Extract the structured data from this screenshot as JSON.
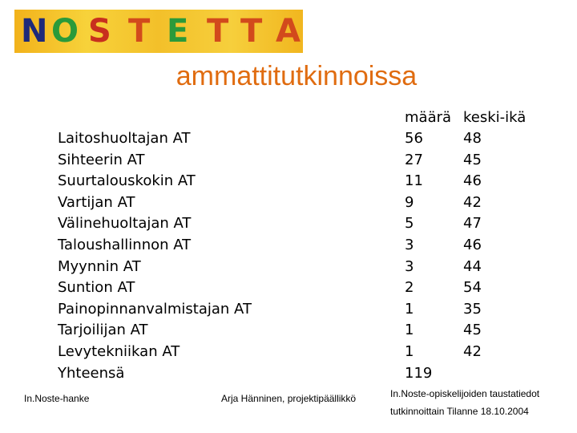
{
  "logo": {
    "letters": [
      "N",
      "O",
      "S",
      "T",
      "E",
      "T",
      "T",
      "A"
    ],
    "colors": [
      "#1e2a7a",
      "#2a9a3a",
      "#c8301e",
      "#d24a1c",
      "#2a9a3a",
      "#d24a1c",
      "#d24a1c",
      "#d24a1c"
    ],
    "background": "#f3c02a"
  },
  "title": "ammattitutkinnoissa",
  "columns": {
    "count_header": "määrä",
    "age_header": "keski-ikä"
  },
  "rows": [
    {
      "label": "Laitoshuoltajan AT",
      "count": "56",
      "age": "48"
    },
    {
      "label": "Sihteerin AT",
      "count": "27",
      "age": "45"
    },
    {
      "label": "Suurtalouskokin AT",
      "count": "11",
      "age": "46"
    },
    {
      "label": "Vartijan AT",
      "count": "9",
      "age": "42"
    },
    {
      "label": "Välinehuoltajan AT",
      "count": "5",
      "age": "47"
    },
    {
      "label": "Taloushallinnon AT",
      "count": "3",
      "age": "46"
    },
    {
      "label": "Myynnin AT",
      "count": "3",
      "age": "44"
    },
    {
      "label": "Suntion AT",
      "count": "2",
      "age": "54"
    },
    {
      "label": "Painopinnanvalmistajan AT",
      "count": "1",
      "age": "35"
    },
    {
      "label": "Tarjoilijan AT",
      "count": "1",
      "age": "45"
    },
    {
      "label": "Levytekniikan AT",
      "count": "1",
      "age": "42"
    },
    {
      "label": "Yhteensä",
      "count": "119",
      "age": ""
    }
  ],
  "footer": {
    "left": "In.Noste-hanke",
    "center": "Arja Hänninen, projektipäällikkö",
    "right_line1": "In.Noste-opiskelijoiden taustatiedot",
    "right_line2": "tutkinnoittain Tilanne 18.10.2004"
  },
  "colors": {
    "title": "#e06c10",
    "text": "#000000"
  }
}
